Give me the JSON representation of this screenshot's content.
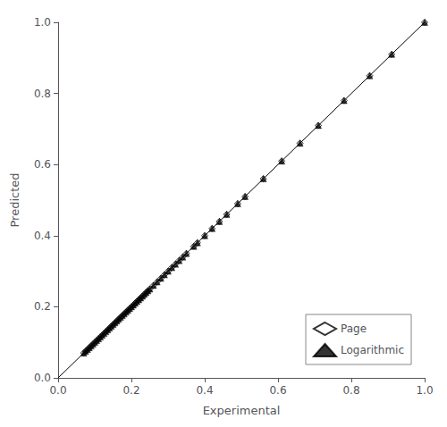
{
  "chart_data": {
    "type": "scatter",
    "xlabel": "Experimental",
    "ylabel": "Predicted",
    "xlim": [
      0.0,
      1.0
    ],
    "ylim": [
      0.0,
      1.0
    ],
    "xticks": [
      {
        "value": 0.0,
        "label": "0.0"
      },
      0.2,
      0.4,
      0.6,
      0.8,
      {
        "value": 1.0,
        "label": "1.0"
      }
    ],
    "yticks": [
      {
        "value": 0.0,
        "label": "0.0"
      },
      0.2,
      0.4,
      0.6,
      0.8,
      {
        "value": 1.0,
        "label": "1.0"
      }
    ],
    "grid": false,
    "legend": "lower right",
    "series": [
      {
        "type": "line",
        "color": "#000000",
        "line_style": "solid",
        "x": [
          0,
          1
        ],
        "values": [
          0,
          1
        ]
      },
      {
        "name": "Page",
        "type": "scatter",
        "color": "#000000",
        "marker": "open-diamond",
        "x": [
          0.07,
          0.075,
          0.08,
          0.085,
          0.09,
          0.095,
          0.1,
          0.105,
          0.11,
          0.115,
          0.12,
          0.125,
          0.13,
          0.135,
          0.14,
          0.145,
          0.15,
          0.155,
          0.16,
          0.165,
          0.17,
          0.175,
          0.18,
          0.185,
          0.19,
          0.195,
          0.2,
          0.205,
          0.21,
          0.215,
          0.22,
          0.225,
          0.23,
          0.235,
          0.24,
          0.245,
          0.25,
          0.26,
          0.27,
          0.28,
          0.29,
          0.3,
          0.31,
          0.32,
          0.33,
          0.34,
          0.35,
          0.37,
          0.38,
          0.4,
          0.42,
          0.44,
          0.46,
          0.49,
          0.51,
          0.56,
          0.61,
          0.66,
          0.71,
          0.78,
          0.85,
          0.91,
          1.0
        ],
        "values": [
          0.07,
          0.075,
          0.08,
          0.085,
          0.09,
          0.095,
          0.1,
          0.105,
          0.11,
          0.115,
          0.12,
          0.125,
          0.13,
          0.135,
          0.14,
          0.145,
          0.15,
          0.155,
          0.16,
          0.165,
          0.17,
          0.175,
          0.18,
          0.185,
          0.19,
          0.195,
          0.2,
          0.205,
          0.21,
          0.215,
          0.22,
          0.225,
          0.23,
          0.235,
          0.24,
          0.245,
          0.25,
          0.26,
          0.27,
          0.28,
          0.29,
          0.3,
          0.31,
          0.32,
          0.33,
          0.34,
          0.35,
          0.37,
          0.38,
          0.4,
          0.42,
          0.44,
          0.46,
          0.49,
          0.51,
          0.56,
          0.61,
          0.66,
          0.71,
          0.78,
          0.85,
          0.91,
          1.0
        ]
      },
      {
        "name": "Logarithmic",
        "type": "scatter",
        "color": "#000000",
        "marker": "triangle",
        "x": [
          0.07,
          0.075,
          0.08,
          0.085,
          0.09,
          0.095,
          0.1,
          0.105,
          0.11,
          0.115,
          0.12,
          0.125,
          0.13,
          0.135,
          0.14,
          0.145,
          0.15,
          0.155,
          0.16,
          0.165,
          0.17,
          0.175,
          0.18,
          0.185,
          0.19,
          0.195,
          0.2,
          0.205,
          0.21,
          0.215,
          0.22,
          0.225,
          0.23,
          0.235,
          0.24,
          0.245,
          0.25,
          0.26,
          0.27,
          0.28,
          0.29,
          0.3,
          0.31,
          0.32,
          0.33,
          0.34,
          0.35,
          0.37,
          0.38,
          0.4,
          0.42,
          0.44,
          0.46,
          0.49,
          0.51,
          0.56,
          0.61,
          0.66,
          0.71,
          0.78,
          0.85,
          0.91,
          1.0
        ],
        "values": [
          0.07,
          0.075,
          0.08,
          0.085,
          0.09,
          0.095,
          0.1,
          0.105,
          0.11,
          0.115,
          0.12,
          0.125,
          0.13,
          0.135,
          0.14,
          0.145,
          0.15,
          0.155,
          0.16,
          0.165,
          0.17,
          0.175,
          0.18,
          0.185,
          0.19,
          0.195,
          0.2,
          0.205,
          0.21,
          0.215,
          0.22,
          0.225,
          0.23,
          0.235,
          0.24,
          0.245,
          0.25,
          0.26,
          0.27,
          0.28,
          0.29,
          0.3,
          0.31,
          0.32,
          0.33,
          0.34,
          0.35,
          0.37,
          0.38,
          0.4,
          0.42,
          0.44,
          0.46,
          0.49,
          0.51,
          0.56,
          0.61,
          0.66,
          0.71,
          0.78,
          0.85,
          0.91,
          1.0
        ]
      }
    ]
  }
}
